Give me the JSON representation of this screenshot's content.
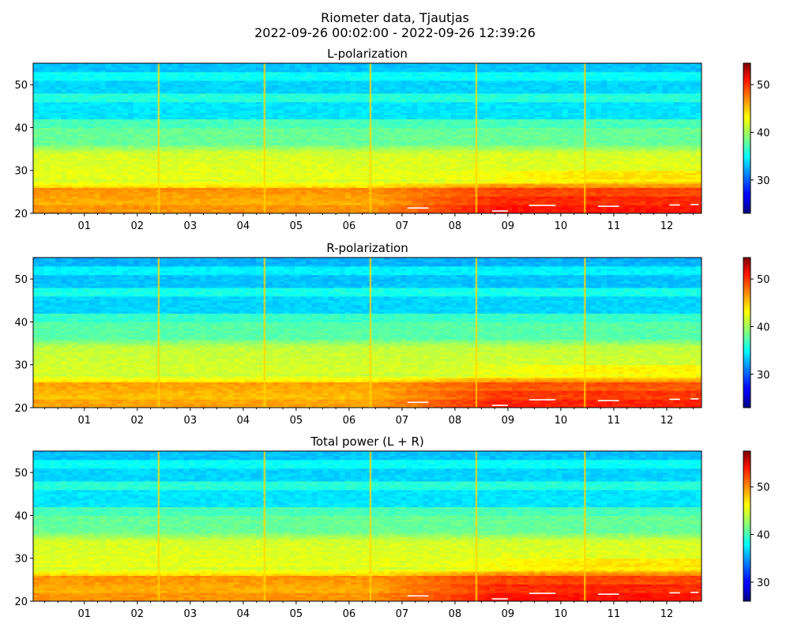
{
  "figure": {
    "title_line1": "Riometer data, Tjautjas",
    "title_line2": "2022-09-26 00:02:00 - 2022-09-26 12:39:26"
  },
  "chart_data": [
    {
      "type": "heatmap",
      "title": "L-polarization",
      "xlabel": "",
      "ylabel": "",
      "x_ticklabels": [
        "01",
        "02",
        "03",
        "04",
        "05",
        "06",
        "07",
        "08",
        "09",
        "10",
        "11",
        "12"
      ],
      "x_range_hours": [
        0.033,
        12.657
      ],
      "y_range": [
        20,
        55
      ],
      "y_ticks": [
        20,
        30,
        40,
        50
      ],
      "colorbar": {
        "range": [
          23,
          54.5
        ],
        "ticks": [
          30,
          40,
          50
        ],
        "colormap": "jet"
      },
      "vertical_spikes_hours": [
        2.4,
        4.4,
        6.4,
        8.4,
        10.45
      ]
    },
    {
      "type": "heatmap",
      "title": "R-polarization",
      "xlabel": "",
      "ylabel": "",
      "x_ticklabels": [
        "01",
        "02",
        "03",
        "04",
        "05",
        "06",
        "07",
        "08",
        "09",
        "10",
        "11",
        "12"
      ],
      "x_range_hours": [
        0.033,
        12.657
      ],
      "y_range": [
        20,
        55
      ],
      "y_ticks": [
        20,
        30,
        40,
        50
      ],
      "colorbar": {
        "range": [
          23,
          54.5
        ],
        "ticks": [
          30,
          40,
          50
        ],
        "colormap": "jet"
      },
      "vertical_spikes_hours": [
        2.4,
        4.4,
        6.4,
        8.4,
        10.45
      ]
    },
    {
      "type": "heatmap",
      "title": "Total power (L + R)",
      "xlabel": "",
      "ylabel": "",
      "x_ticklabels": [
        "01",
        "02",
        "03",
        "04",
        "05",
        "06",
        "07",
        "08",
        "09",
        "10",
        "11",
        "12"
      ],
      "x_range_hours": [
        0.033,
        12.657
      ],
      "y_range": [
        20,
        55
      ],
      "y_ticks": [
        20,
        30,
        40,
        50
      ],
      "colorbar": {
        "range": [
          26,
          57.5
        ],
        "ticks": [
          30,
          40,
          50
        ],
        "colormap": "jet"
      },
      "vertical_spikes_hours": [
        2.4,
        4.4,
        6.4,
        8.4,
        10.45
      ]
    }
  ]
}
